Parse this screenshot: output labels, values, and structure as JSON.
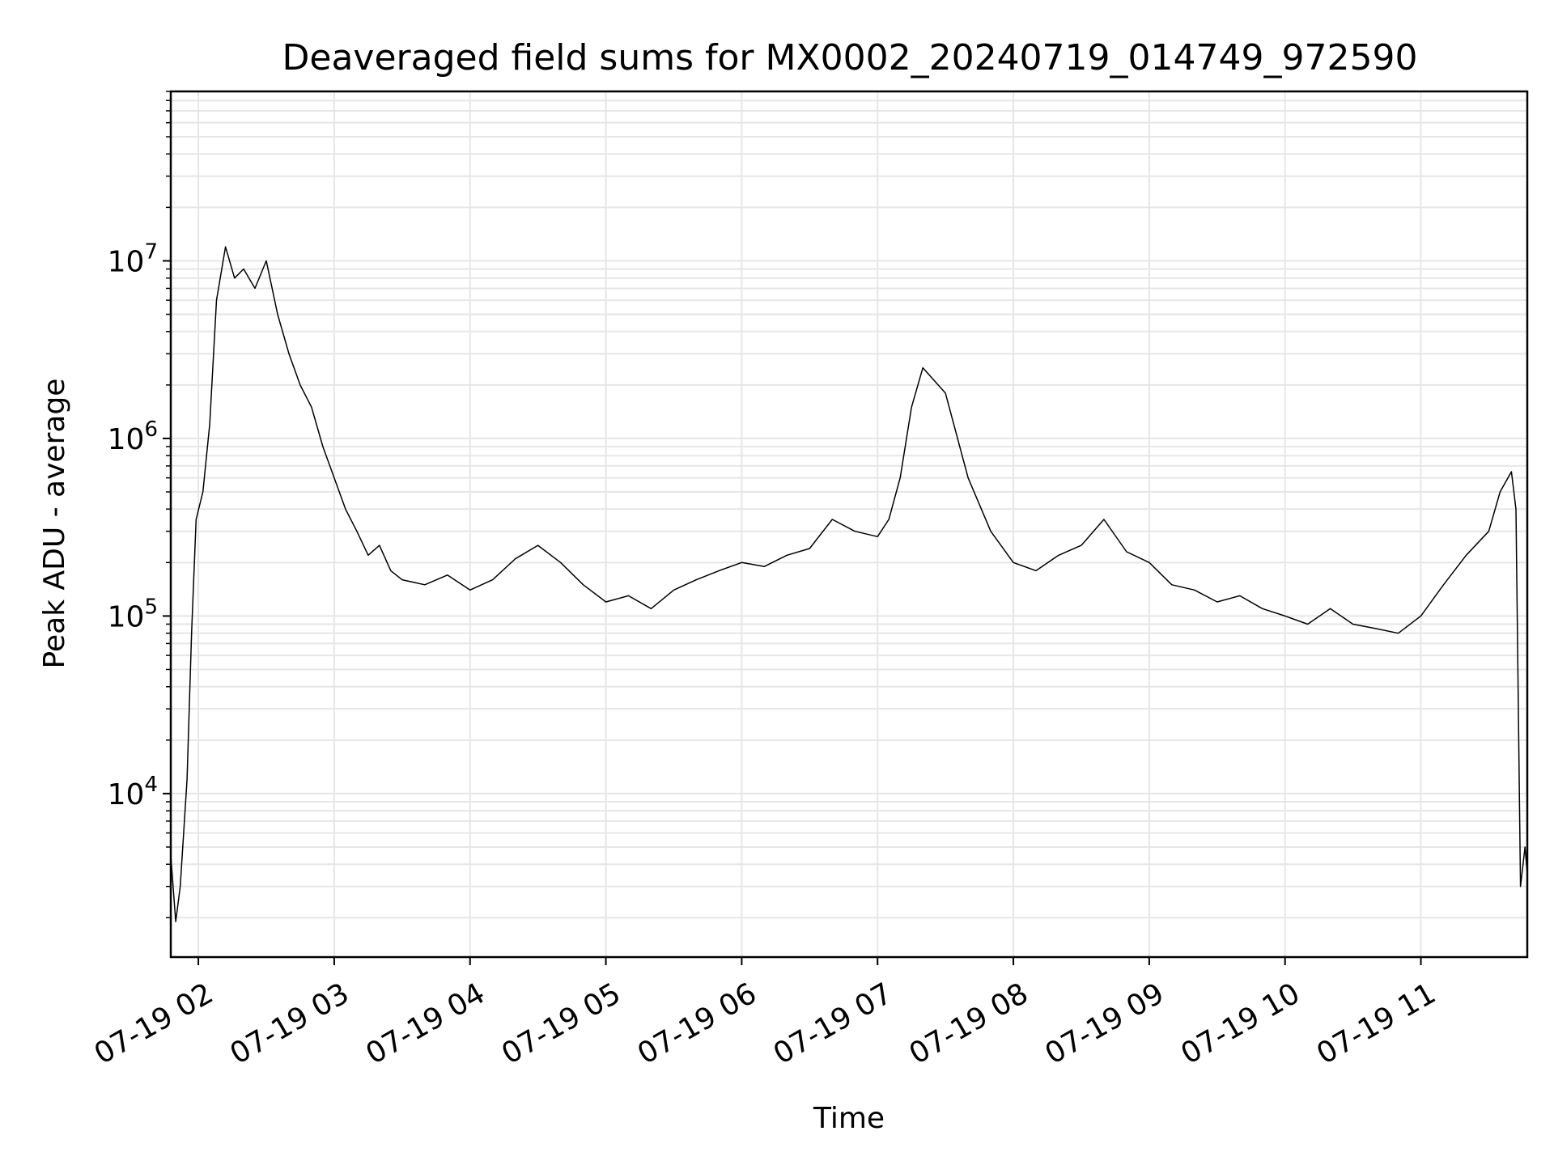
{
  "chart_data": {
    "type": "line",
    "title": "Deaveraged field sums for MX0002_20240719_014749_972590",
    "xlabel": "Time",
    "ylabel": "Peak ADU - average",
    "yscale": "log",
    "grid": true,
    "ylim": [
      1200,
      90000000
    ],
    "xlim": [
      "2024-07-19 01:47:49",
      "2024-07-19 11:47:00"
    ],
    "x_tick_labels": [
      "07-19 02",
      "07-19 03",
      "07-19 04",
      "07-19 05",
      "07-19 06",
      "07-19 07",
      "07-19 08",
      "07-19 09",
      "07-19 10",
      "07-19 11"
    ],
    "x_tick_values": [
      "2024-07-19 02:00",
      "2024-07-19 03:00",
      "2024-07-19 04:00",
      "2024-07-19 05:00",
      "2024-07-19 06:00",
      "2024-07-19 07:00",
      "2024-07-19 08:00",
      "2024-07-19 09:00",
      "2024-07-19 10:00",
      "2024-07-19 11:00"
    ],
    "y_tick_labels": [
      {
        "value": 10000,
        "base": "10",
        "exp": "4"
      },
      {
        "value": 100000,
        "base": "10",
        "exp": "5"
      },
      {
        "value": 1000000,
        "base": "10",
        "exp": "6"
      },
      {
        "value": 10000000,
        "base": "10",
        "exp": "7"
      }
    ],
    "series": [
      {
        "color": "#000000",
        "x": [
          "2024-07-19 01:47:49",
          "2024-07-19 01:50",
          "2024-07-19 01:52",
          "2024-07-19 01:55",
          "2024-07-19 01:57",
          "2024-07-19 01:59",
          "2024-07-19 02:02",
          "2024-07-19 02:05",
          "2024-07-19 02:08",
          "2024-07-19 02:12",
          "2024-07-19 02:16",
          "2024-07-19 02:20",
          "2024-07-19 02:25",
          "2024-07-19 02:30",
          "2024-07-19 02:35",
          "2024-07-19 02:40",
          "2024-07-19 02:45",
          "2024-07-19 02:50",
          "2024-07-19 02:55",
          "2024-07-19 03:00",
          "2024-07-19 03:05",
          "2024-07-19 03:10",
          "2024-07-19 03:15",
          "2024-07-19 03:20",
          "2024-07-19 03:25",
          "2024-07-19 03:30",
          "2024-07-19 03:40",
          "2024-07-19 03:50",
          "2024-07-19 04:00",
          "2024-07-19 04:10",
          "2024-07-19 04:20",
          "2024-07-19 04:30",
          "2024-07-19 04:40",
          "2024-07-19 04:50",
          "2024-07-19 05:00",
          "2024-07-19 05:10",
          "2024-07-19 05:20",
          "2024-07-19 05:30",
          "2024-07-19 05:40",
          "2024-07-19 05:50",
          "2024-07-19 06:00",
          "2024-07-19 06:10",
          "2024-07-19 06:20",
          "2024-07-19 06:30",
          "2024-07-19 06:40",
          "2024-07-19 06:50",
          "2024-07-19 07:00",
          "2024-07-19 07:05",
          "2024-07-19 07:10",
          "2024-07-19 07:15",
          "2024-07-19 07:20",
          "2024-07-19 07:30",
          "2024-07-19 07:40",
          "2024-07-19 07:50",
          "2024-07-19 08:00",
          "2024-07-19 08:10",
          "2024-07-19 08:20",
          "2024-07-19 08:30",
          "2024-07-19 08:40",
          "2024-07-19 08:50",
          "2024-07-19 09:00",
          "2024-07-19 09:10",
          "2024-07-19 09:20",
          "2024-07-19 09:30",
          "2024-07-19 09:40",
          "2024-07-19 09:50",
          "2024-07-19 10:00",
          "2024-07-19 10:10",
          "2024-07-19 10:20",
          "2024-07-19 10:30",
          "2024-07-19 10:40",
          "2024-07-19 10:50",
          "2024-07-19 11:00",
          "2024-07-19 11:10",
          "2024-07-19 11:20",
          "2024-07-19 11:30",
          "2024-07-19 11:35",
          "2024-07-19 11:40",
          "2024-07-19 11:42",
          "2024-07-19 11:44",
          "2024-07-19 11:46",
          "2024-07-19 11:47"
        ],
        "y": [
          4500,
          1900,
          3000,
          12000,
          80000,
          350000,
          500000,
          1200000,
          6000000,
          12000000,
          8000000,
          9000000,
          7000000,
          10000000,
          5000000,
          3000000,
          2000000,
          1500000,
          900000,
          600000,
          400000,
          300000,
          220000,
          250000,
          180000,
          160000,
          150000,
          170000,
          140000,
          160000,
          210000,
          250000,
          200000,
          150000,
          120000,
          130000,
          110000,
          140000,
          160000,
          180000,
          200000,
          190000,
          220000,
          240000,
          350000,
          300000,
          280000,
          350000,
          600000,
          1500000,
          2500000,
          1800000,
          600000,
          300000,
          200000,
          180000,
          220000,
          250000,
          350000,
          230000,
          200000,
          150000,
          140000,
          120000,
          130000,
          110000,
          100000,
          90000,
          110000,
          90000,
          85000,
          80000,
          100000,
          150000,
          220000,
          300000,
          500000,
          650000,
          400000,
          3000,
          5000,
          3500
        ]
      }
    ]
  }
}
